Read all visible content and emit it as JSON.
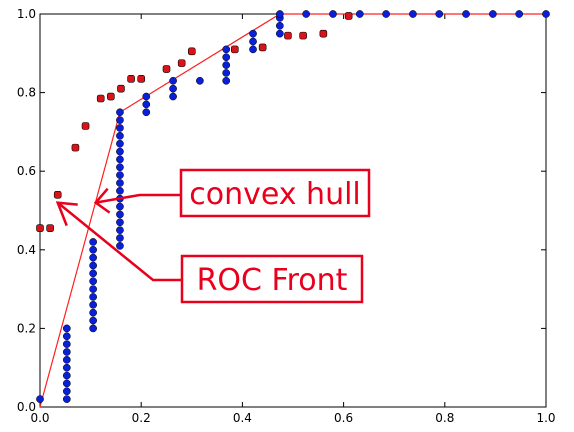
{
  "chart_data": {
    "type": "scatter",
    "title": "",
    "xlabel": "",
    "ylabel": "",
    "xlim": [
      0,
      1
    ],
    "ylim": [
      0,
      1
    ],
    "grid": false,
    "legend": "none",
    "x_ticks": [
      "0.0",
      "0.2",
      "0.4",
      "0.6",
      "0.8",
      "1.0"
    ],
    "y_ticks": [
      "0.0",
      "0.2",
      "0.4",
      "0.6",
      "0.8",
      "1.0"
    ],
    "colors": {
      "blue_points": "#0a1fd8",
      "red_points": "#d8141a",
      "hull_line": "#ff2020",
      "annotation": "#e8001c"
    },
    "series": [
      {
        "marker": "blue-circle",
        "points": [
          [
            0.0,
            0.02
          ],
          [
            0.053,
            0.02
          ],
          [
            0.053,
            0.04
          ],
          [
            0.053,
            0.06
          ],
          [
            0.053,
            0.08
          ],
          [
            0.053,
            0.1
          ],
          [
            0.053,
            0.12
          ],
          [
            0.053,
            0.14
          ],
          [
            0.053,
            0.16
          ],
          [
            0.053,
            0.18
          ],
          [
            0.053,
            0.2
          ],
          [
            0.105,
            0.2
          ],
          [
            0.105,
            0.22
          ],
          [
            0.105,
            0.24
          ],
          [
            0.105,
            0.26
          ],
          [
            0.105,
            0.28
          ],
          [
            0.105,
            0.3
          ],
          [
            0.105,
            0.32
          ],
          [
            0.105,
            0.34
          ],
          [
            0.105,
            0.36
          ],
          [
            0.105,
            0.38
          ],
          [
            0.105,
            0.4
          ],
          [
            0.105,
            0.42
          ],
          [
            0.158,
            0.41
          ],
          [
            0.158,
            0.43
          ],
          [
            0.158,
            0.45
          ],
          [
            0.158,
            0.47
          ],
          [
            0.158,
            0.49
          ],
          [
            0.158,
            0.51
          ],
          [
            0.158,
            0.53
          ],
          [
            0.158,
            0.55
          ],
          [
            0.158,
            0.57
          ],
          [
            0.158,
            0.59
          ],
          [
            0.158,
            0.61
          ],
          [
            0.158,
            0.63
          ],
          [
            0.158,
            0.65
          ],
          [
            0.158,
            0.67
          ],
          [
            0.158,
            0.69
          ],
          [
            0.158,
            0.71
          ],
          [
            0.158,
            0.73
          ],
          [
            0.158,
            0.75
          ],
          [
            0.21,
            0.75
          ],
          [
            0.21,
            0.77
          ],
          [
            0.21,
            0.79
          ],
          [
            0.263,
            0.79
          ],
          [
            0.263,
            0.81
          ],
          [
            0.263,
            0.83
          ],
          [
            0.316,
            0.83
          ],
          [
            0.368,
            0.83
          ],
          [
            0.368,
            0.85
          ],
          [
            0.368,
            0.87
          ],
          [
            0.368,
            0.89
          ],
          [
            0.368,
            0.91
          ],
          [
            0.421,
            0.91
          ],
          [
            0.421,
            0.93
          ],
          [
            0.421,
            0.95
          ],
          [
            0.474,
            0.95
          ],
          [
            0.474,
            0.97
          ],
          [
            0.474,
            0.99
          ],
          [
            0.474,
            1.0
          ],
          [
            0.526,
            1.0
          ],
          [
            0.579,
            1.0
          ],
          [
            0.632,
            1.0
          ],
          [
            0.684,
            1.0
          ],
          [
            0.737,
            1.0
          ],
          [
            0.789,
            1.0
          ],
          [
            0.842,
            1.0
          ],
          [
            0.895,
            1.0
          ],
          [
            0.947,
            1.0
          ],
          [
            1.0,
            1.0
          ]
        ]
      },
      {
        "marker": "red-square",
        "points": [
          [
            0.0,
            0.455
          ],
          [
            0.02,
            0.455
          ],
          [
            0.035,
            0.54
          ],
          [
            0.07,
            0.66
          ],
          [
            0.09,
            0.715
          ],
          [
            0.12,
            0.785
          ],
          [
            0.14,
            0.79
          ],
          [
            0.16,
            0.81
          ],
          [
            0.18,
            0.835
          ],
          [
            0.2,
            0.835
          ],
          [
            0.25,
            0.86
          ],
          [
            0.28,
            0.875
          ],
          [
            0.3,
            0.905
          ],
          [
            0.385,
            0.91
          ],
          [
            0.44,
            0.915
          ],
          [
            0.49,
            0.945
          ],
          [
            0.52,
            0.945
          ],
          [
            0.56,
            0.95
          ],
          [
            0.61,
            0.995
          ]
        ]
      }
    ],
    "hull_line": [
      [
        0.0,
        0.0
      ],
      [
        0.158,
        0.75
      ],
      [
        0.474,
        1.0
      ],
      [
        1.0,
        1.0
      ]
    ],
    "annotations": [
      {
        "text": "convex hull",
        "arrow_to": [
          0.11,
          0.52
        ]
      },
      {
        "text": "ROC Front",
        "arrow_to": [
          0.035,
          0.52
        ]
      }
    ]
  }
}
